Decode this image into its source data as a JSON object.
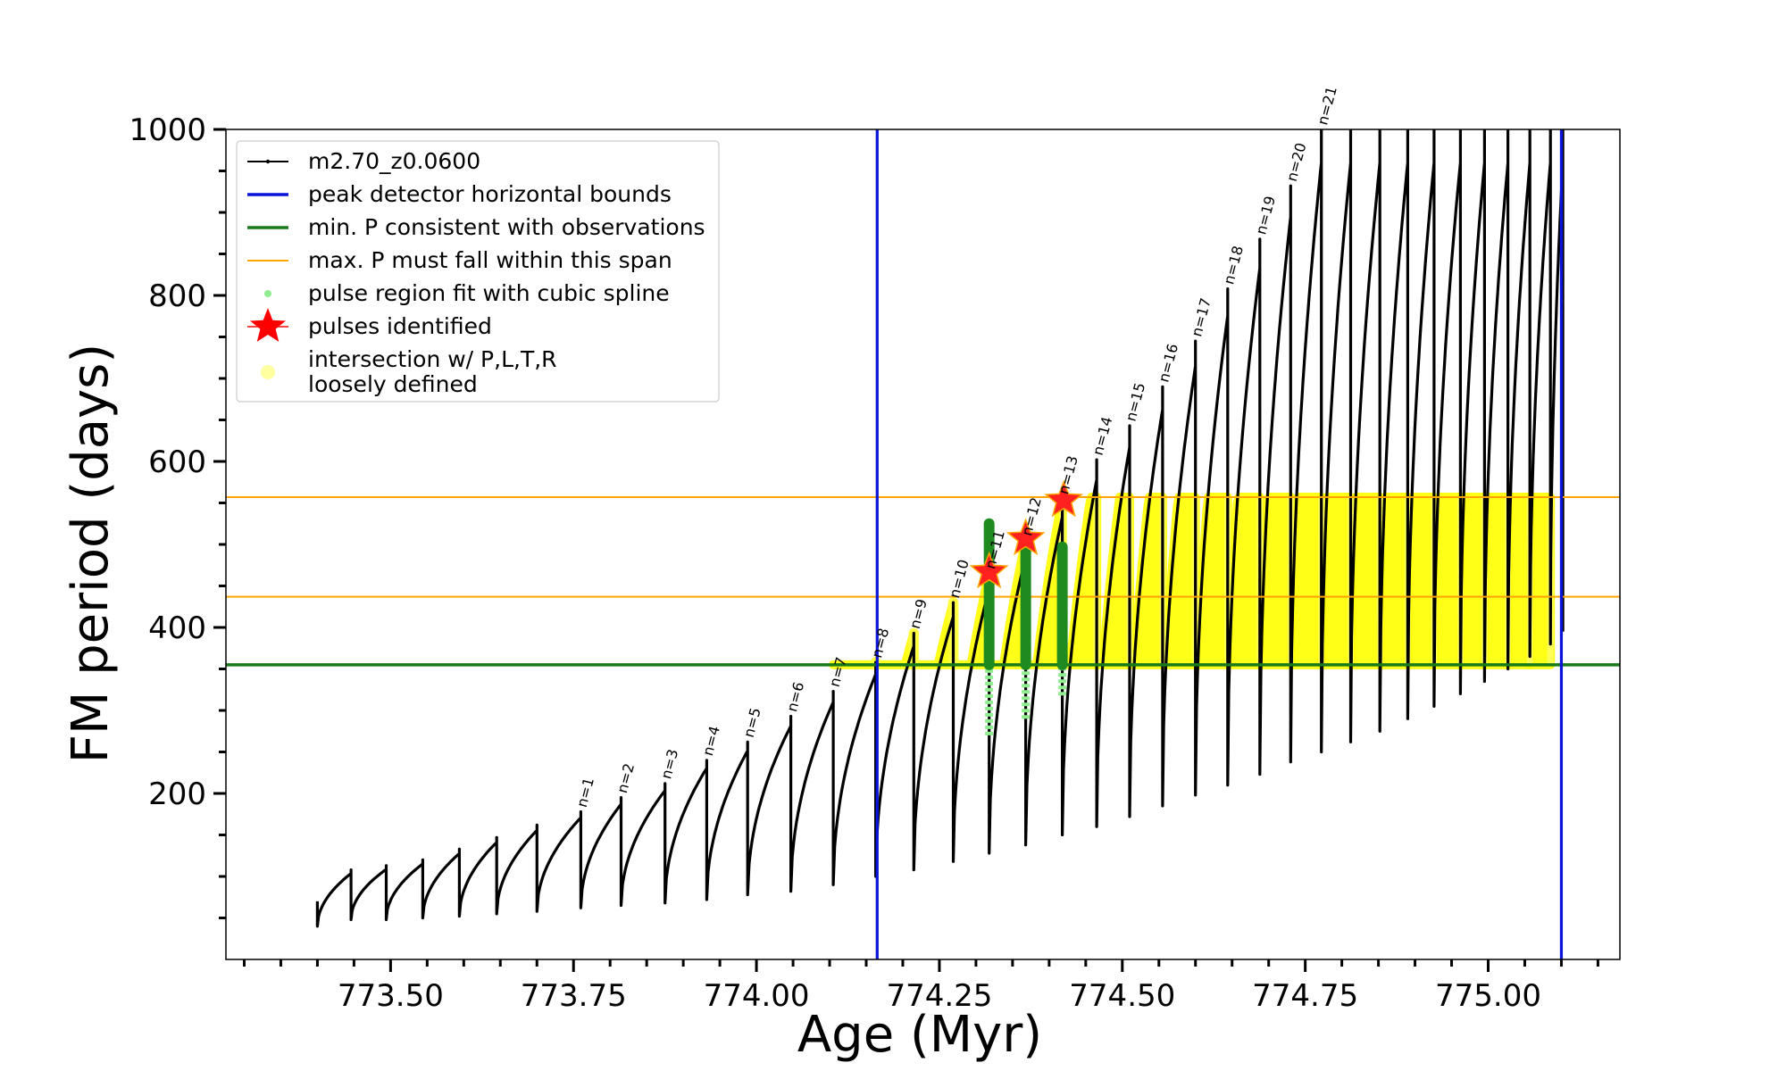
{
  "chart_data": {
    "type": "line",
    "title": "",
    "xlabel": "Age (Myr)",
    "ylabel": "FM period (days)",
    "xlim": [
      773.275,
      775.18
    ],
    "ylim": [
      0,
      1000
    ],
    "x_ticks": [
      773.5,
      773.75,
      774.0,
      774.25,
      774.5,
      774.75,
      775.0
    ],
    "x_tick_labels": [
      "773.50",
      "773.75",
      "774.00",
      "774.25",
      "774.50",
      "774.75",
      "775.00"
    ],
    "y_ticks": [
      200,
      400,
      600,
      800,
      1000
    ],
    "y_tick_labels": [
      "200",
      "400",
      "600",
      "800",
      "1000"
    ],
    "series_model": {
      "name": "m2.70_z0.0600",
      "color": "#000000",
      "start_age": 773.4,
      "initial_min": 40,
      "initial_max": 70,
      "pulses": [
        {
          "age": 773.446,
          "min": 48,
          "max": 108
        },
        {
          "age": 773.494,
          "min": 48,
          "max": 113
        },
        {
          "age": 773.544,
          "min": 50,
          "max": 120
        },
        {
          "age": 773.594,
          "min": 52,
          "max": 133
        },
        {
          "age": 773.645,
          "min": 55,
          "max": 147
        },
        {
          "age": 773.7,
          "min": 58,
          "max": 162
        },
        {
          "age": 773.76,
          "min": 62,
          "max": 178
        },
        {
          "age": 773.815,
          "min": 65,
          "max": 195
        },
        {
          "age": 773.875,
          "min": 68,
          "max": 212
        },
        {
          "age": 773.932,
          "min": 72,
          "max": 240
        },
        {
          "age": 773.988,
          "min": 78,
          "max": 262
        },
        {
          "age": 774.047,
          "min": 82,
          "max": 293
        },
        {
          "age": 774.105,
          "min": 90,
          "max": 323
        },
        {
          "age": 774.163,
          "min": 100,
          "max": 358
        },
        {
          "age": 774.215,
          "min": 108,
          "max": 393
        },
        {
          "age": 774.269,
          "min": 118,
          "max": 430
        },
        {
          "age": 774.318,
          "min": 128,
          "max": 465
        },
        {
          "age": 774.368,
          "min": 138,
          "max": 505
        },
        {
          "age": 774.418,
          "min": 150,
          "max": 555
        },
        {
          "age": 774.465,
          "min": 160,
          "max": 602
        },
        {
          "age": 774.51,
          "min": 172,
          "max": 643
        },
        {
          "age": 774.555,
          "min": 185,
          "max": 690
        },
        {
          "age": 774.6,
          "min": 198,
          "max": 745
        },
        {
          "age": 774.644,
          "min": 210,
          "max": 808
        },
        {
          "age": 774.688,
          "min": 223,
          "max": 868
        },
        {
          "age": 774.73,
          "min": 238,
          "max": 932
        },
        {
          "age": 774.772,
          "min": 250,
          "max": 1000
        },
        {
          "age": 774.812,
          "min": 262,
          "max": 1000
        },
        {
          "age": 774.852,
          "min": 275,
          "max": 1000
        },
        {
          "age": 774.89,
          "min": 290,
          "max": 1000
        },
        {
          "age": 774.926,
          "min": 305,
          "max": 1000
        },
        {
          "age": 774.962,
          "min": 320,
          "max": 1000
        },
        {
          "age": 774.995,
          "min": 335,
          "max": 1000
        },
        {
          "age": 775.027,
          "min": 350,
          "max": 1000
        },
        {
          "age": 775.057,
          "min": 365,
          "max": 1000
        },
        {
          "age": 775.085,
          "min": 380,
          "max": 1000
        },
        {
          "age": 775.102,
          "min": 395,
          "max": 1000
        }
      ]
    },
    "envelope_segments": [
      [
        773.4,
        70
      ],
      [
        773.446,
        108
      ],
      [
        773.494,
        113
      ],
      [
        773.544,
        120
      ],
      [
        773.594,
        133
      ],
      [
        773.645,
        147
      ],
      [
        773.7,
        162
      ],
      [
        773.76,
        178
      ],
      [
        773.815,
        195
      ],
      [
        773.875,
        212
      ],
      [
        773.932,
        240
      ],
      [
        773.988,
        262
      ],
      [
        774.047,
        293
      ],
      [
        774.105,
        323
      ],
      [
        774.163,
        358
      ],
      [
        774.215,
        393
      ],
      [
        774.269,
        430
      ],
      [
        774.318,
        465
      ],
      [
        774.368,
        505
      ],
      [
        774.418,
        555
      ],
      [
        774.465,
        602
      ],
      [
        774.51,
        643
      ],
      [
        774.555,
        690
      ],
      [
        774.6,
        745
      ],
      [
        774.644,
        808
      ],
      [
        774.688,
        868
      ],
      [
        774.73,
        932
      ],
      [
        774.772,
        1000
      ]
    ],
    "pulse_labels": [
      {
        "text": "n=1",
        "age": 773.76,
        "p": 178
      },
      {
        "text": "n=2",
        "age": 773.815,
        "p": 195
      },
      {
        "text": "n=3",
        "age": 773.875,
        "p": 212
      },
      {
        "text": "n=4",
        "age": 773.932,
        "p": 240
      },
      {
        "text": "n=5",
        "age": 773.988,
        "p": 262
      },
      {
        "text": "n=6",
        "age": 774.047,
        "p": 293
      },
      {
        "text": "n=7",
        "age": 774.105,
        "p": 323
      },
      {
        "text": "n=8",
        "age": 774.163,
        "p": 358
      },
      {
        "text": "n=9",
        "age": 774.215,
        "p": 393
      },
      {
        "text": "n=10",
        "age": 774.269,
        "p": 430
      },
      {
        "text": "n=11",
        "age": 774.318,
        "p": 465
      },
      {
        "text": "n=12",
        "age": 774.368,
        "p": 505
      },
      {
        "text": "n=13",
        "age": 774.418,
        "p": 555
      },
      {
        "text": "n=14",
        "age": 774.465,
        "p": 602
      },
      {
        "text": "n=15",
        "age": 774.51,
        "p": 643
      },
      {
        "text": "n=16",
        "age": 774.555,
        "p": 690
      },
      {
        "text": "n=17",
        "age": 774.6,
        "p": 745
      },
      {
        "text": "n=18",
        "age": 774.644,
        "p": 808
      },
      {
        "text": "n=19",
        "age": 774.688,
        "p": 868
      },
      {
        "text": "n=20",
        "age": 774.73,
        "p": 932
      },
      {
        "text": "n=21",
        "age": 774.772,
        "p": 1000
      }
    ],
    "horizontal_bounds": {
      "name": "peak detector horizontal bounds",
      "color": "#0a14d8",
      "ages": [
        774.165,
        775.1
      ]
    },
    "min_p_line": {
      "name": "min. P consistent with observations",
      "color": "#197a19",
      "value": 355
    },
    "max_p_span": {
      "name": "max. P must fall within this span",
      "color": "#ffa500",
      "values": [
        437,
        557
      ]
    },
    "spline_regions": {
      "name": "pulse region fit with cubic spline",
      "color": "#90ee90",
      "regions": [
        {
          "age": 774.318,
          "low": 270,
          "high": 470
        },
        {
          "age": 774.368,
          "low": 290,
          "high": 500
        },
        {
          "age": 774.418,
          "low": 318,
          "high": 500
        }
      ]
    },
    "green_fits": [
      {
        "age": 774.318,
        "low": 355,
        "high": 525
      },
      {
        "age": 774.368,
        "low": 355,
        "high": 497
      },
      {
        "age": 774.418,
        "low": 355,
        "high": 497
      }
    ],
    "pulses_identified": {
      "name": "pulses identified",
      "color": "#ff0000",
      "points": [
        {
          "age": 774.318,
          "p": 467
        },
        {
          "age": 774.368,
          "p": 507
        },
        {
          "age": 774.42,
          "p": 553
        }
      ]
    },
    "intersection_band": {
      "name": "intersection w/ P,L,T,R loosely defined",
      "color": "#ffff00",
      "low": 355,
      "high": 557,
      "age_start": 774.163,
      "age_end": 775.1
    },
    "legend": {
      "position": "upper-left",
      "entries": [
        "m2.70_z0.0600",
        "peak detector horizontal bounds",
        "min. P consistent with observations",
        "max. P must fall within this span",
        "pulse region fit with cubic spline",
        "pulses identified",
        "intersection w/ P,L,T,R",
        "loosely defined"
      ]
    }
  }
}
